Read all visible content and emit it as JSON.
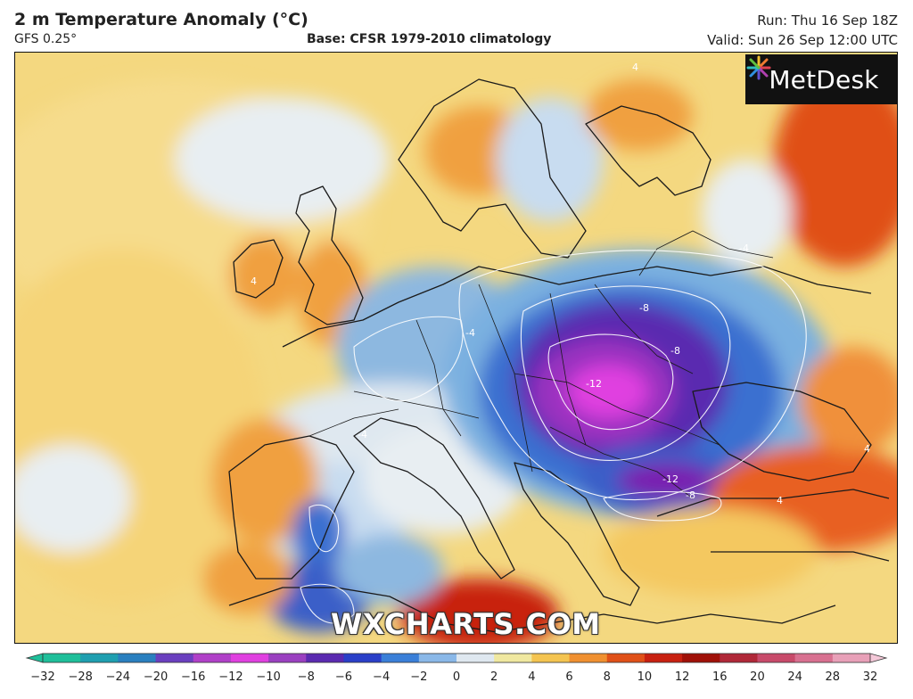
{
  "header": {
    "title": "2 m Temperature Anomaly (°C)",
    "model": "GFS 0.25°",
    "base": "Base: CFSR 1979-2010 climatology",
    "run": "Run: Thu 16 Sep 18Z",
    "valid": "Valid: Sun 26 Sep 12:00 UTC"
  },
  "map": {
    "logo_text": "MetDesk",
    "watermark": "WXCHARTS.COM",
    "contour_labels": [
      "-12",
      "-8",
      "-8",
      "-12",
      "-8",
      "-4",
      "-4",
      "-4",
      "4",
      "4",
      "4",
      "4"
    ]
  },
  "colorbar": {
    "ticks": [
      "−32",
      "−28",
      "−24",
      "−20",
      "−16",
      "−12",
      "−10",
      "−8",
      "−6",
      "−4",
      "−2",
      "0",
      "2",
      "4",
      "6",
      "8",
      "10",
      "12",
      "16",
      "20",
      "24",
      "28",
      "32"
    ],
    "colors": [
      "#1fbf9a",
      "#1f9fb0",
      "#2a7fbf",
      "#6a3fbf",
      "#b040c8",
      "#e040e0",
      "#9a40c0",
      "#5a2ab0",
      "#2a3fc8",
      "#3a7fd8",
      "#8ab8e8",
      "#dfe8f0",
      "#f0e8a0",
      "#f4c450",
      "#f09030",
      "#e05018",
      "#c82010",
      "#a01008",
      "#b02838",
      "#c84a6a",
      "#d87090",
      "#e8a0b8",
      "#f4c8d8"
    ]
  },
  "colors": {
    "land_warm": "#f2c24a",
    "land_cool": "#8db8e0",
    "cold_core": "#7a1fb0",
    "cold_peak": "#e040e0",
    "hot": "#e05a18"
  }
}
